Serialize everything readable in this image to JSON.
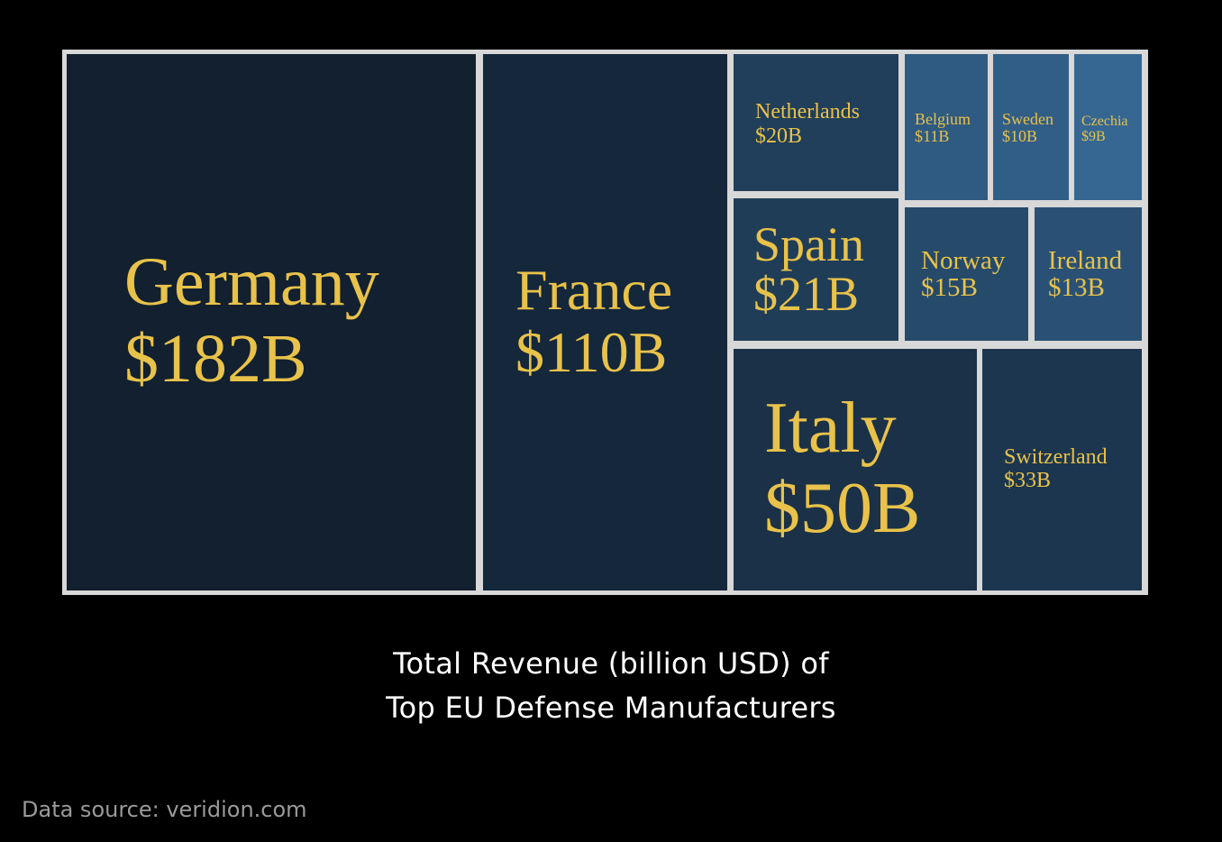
{
  "chart_data": {
    "type": "treemap",
    "unit_prefix": "$",
    "unit_suffix": "B",
    "items": [
      {
        "label": "Germany",
        "value": 182,
        "value_label": "$182B",
        "color": "#12202f"
      },
      {
        "label": "France",
        "value": 110,
        "value_label": "$110B",
        "color": "#14273b"
      },
      {
        "label": "Italy",
        "value": 50,
        "value_label": "$50B",
        "color": "#1b3147"
      },
      {
        "label": "Switzerland",
        "value": 33,
        "value_label": "$33B",
        "color": "#1c364f"
      },
      {
        "label": "Spain",
        "value": 21,
        "value_label": "$21B",
        "color": "#203d58"
      },
      {
        "label": "Netherlands",
        "value": 20,
        "value_label": "$20B",
        "color": "#213e5a"
      },
      {
        "label": "Norway",
        "value": 15,
        "value_label": "$15B",
        "color": "#264a6a"
      },
      {
        "label": "Ireland",
        "value": 13,
        "value_label": "$13B",
        "color": "#2a5175"
      },
      {
        "label": "Belgium",
        "value": 11,
        "value_label": "$11B",
        "color": "#2f5a82"
      },
      {
        "label": "Sweden",
        "value": 10,
        "value_label": "$10B",
        "color": "#315e87"
      },
      {
        "label": "Czechia",
        "value": 9,
        "value_label": "$9B",
        "color": "#356792"
      }
    ],
    "label_color": "#e8c24a",
    "border_color": "#d8d8d8"
  },
  "caption": {
    "line1": "Total Revenue (billion USD) of",
    "line2": "Top EU Defense Manufacturers"
  },
  "source": "Data source: veridion.com"
}
